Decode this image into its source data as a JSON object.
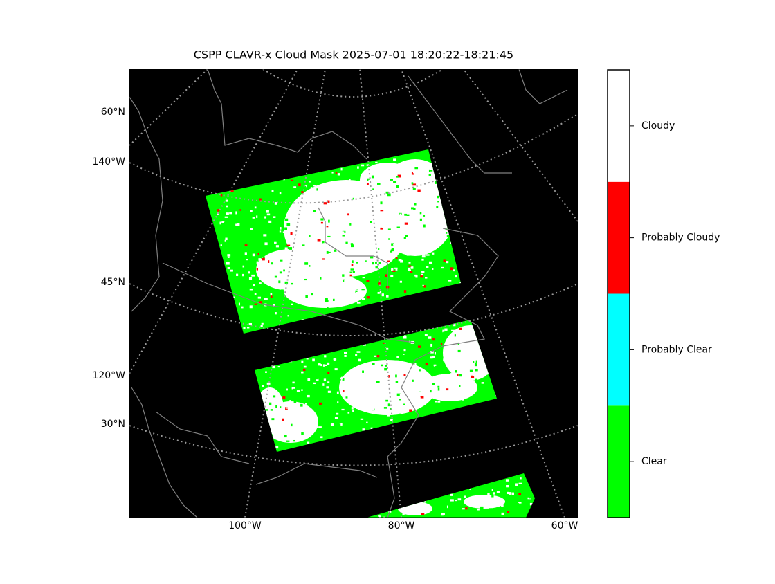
{
  "title": "CSPP CLAVR-x Cloud Mask 2025-07-01 18:20:22-18:21:45",
  "left_labels": [
    "60°N",
    "140°W",
    "45°N",
    "120°W",
    "30°N"
  ],
  "bottom_labels": [
    "100°W",
    "80°W",
    "60°W"
  ],
  "colorbar": {
    "categories": [
      "Clear",
      "Probably Clear",
      "Probably Cloudy",
      "Cloudy"
    ],
    "colors": [
      "#00ff00",
      "#00ffff",
      "#ff0000",
      "#ffffff"
    ]
  }
}
